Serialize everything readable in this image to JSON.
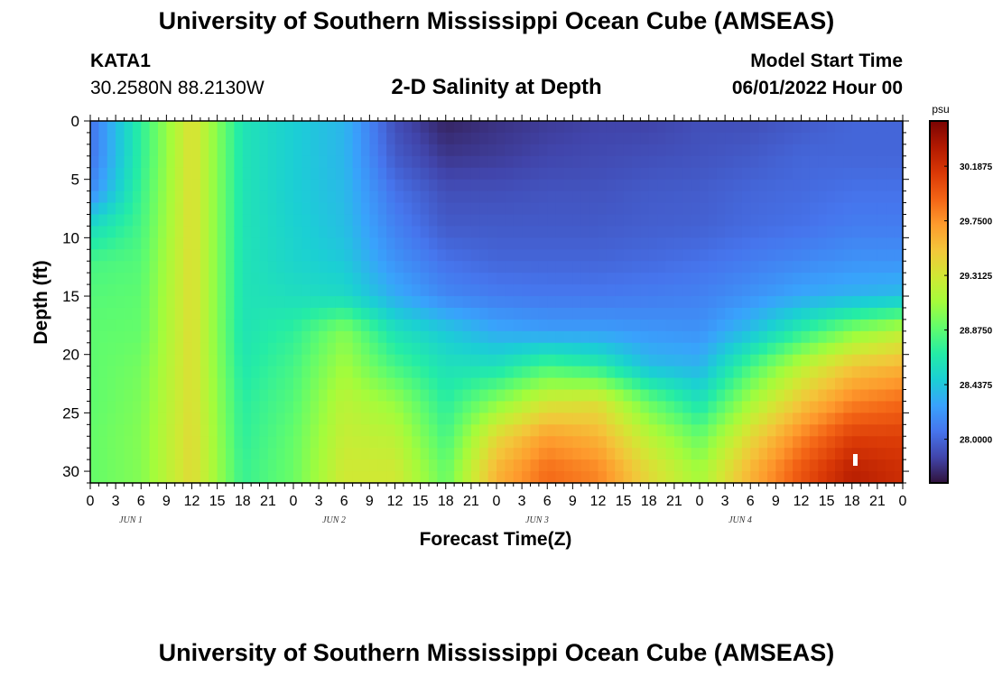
{
  "page": {
    "title": "University of Southern Mississippi Ocean Cube (AMSEAS)",
    "station": "KATA1",
    "location": "30.2580N  88.2130W",
    "subtitle": "2-D Salinity at Depth",
    "model_start_label": "Model Start Time",
    "model_start_value": "06/01/2022 Hour 00",
    "footer_title": "University of Southern Mississippi Ocean Cube (AMSEAS)"
  },
  "chart_data": {
    "type": "heatmap",
    "title": "2-D Salinity at Depth",
    "xlabel": "Forecast Time(Z)",
    "ylabel": "Depth (ft)",
    "x_tick_labels": [
      "0",
      "3",
      "6",
      "9",
      "12",
      "15",
      "18",
      "21",
      "0",
      "3",
      "6",
      "9",
      "12",
      "15",
      "18",
      "21",
      "0",
      "3",
      "6",
      "9",
      "12",
      "15",
      "18",
      "21",
      "0",
      "3",
      "6",
      "9",
      "12",
      "15",
      "18",
      "21",
      "0"
    ],
    "date_labels": [
      "JUN 1",
      "JUN 2",
      "JUN 3",
      "JUN 4"
    ],
    "xlim_hours": [
      0,
      96
    ],
    "y_ticks": [
      0,
      5,
      10,
      15,
      20,
      25,
      30
    ],
    "ylim_ft": [
      0,
      31
    ],
    "y_inverted": true,
    "colorbar": {
      "unit": "psu",
      "tick_labels": [
        "30.1875",
        "29.7500",
        "29.3125",
        "28.8750",
        "28.4375",
        "28.0000"
      ],
      "ticks": [
        30.1875,
        29.75,
        29.3125,
        28.875,
        28.4375,
        28.0
      ],
      "range": [
        27.65,
        30.55
      ],
      "colormap": [
        "#30123b",
        "#4145ab",
        "#4675ed",
        "#39a2fc",
        "#1bcfd4",
        "#24eca6",
        "#61fc6c",
        "#a4fc3b",
        "#d1e834",
        "#f3c63a",
        "#fe9b2d",
        "#f36315",
        "#d93806",
        "#b11901",
        "#7a0403"
      ]
    },
    "times_hours": [
      0,
      6,
      12,
      18,
      24,
      30,
      36,
      42,
      48,
      54,
      60,
      66,
      72,
      78,
      84,
      90,
      96
    ],
    "depths_ft": [
      0,
      3,
      6,
      9,
      12,
      15,
      18,
      21,
      24,
      27,
      30,
      31
    ],
    "salinity_psu": [
      [
        28.05,
        28.72,
        29.38,
        28.62,
        28.48,
        28.36,
        27.9,
        27.72,
        27.78,
        27.82,
        27.85,
        27.85,
        27.9,
        27.9,
        27.95,
        28.0,
        28.0
      ],
      [
        28.05,
        28.72,
        29.38,
        28.62,
        28.48,
        28.36,
        27.95,
        27.8,
        27.82,
        27.86,
        27.88,
        27.9,
        27.92,
        27.95,
        28.0,
        28.0,
        28.0
      ],
      [
        28.15,
        28.76,
        29.38,
        28.62,
        28.48,
        28.38,
        28.05,
        27.9,
        27.9,
        27.92,
        27.92,
        27.95,
        27.96,
        28.0,
        28.02,
        28.05,
        28.05
      ],
      [
        28.55,
        28.8,
        29.38,
        28.62,
        28.5,
        28.4,
        28.12,
        27.95,
        27.95,
        27.95,
        27.95,
        27.97,
        27.98,
        28.02,
        28.05,
        28.1,
        28.1
      ],
      [
        28.8,
        28.85,
        29.38,
        28.62,
        28.52,
        28.45,
        28.2,
        28.05,
        28.0,
        28.0,
        28.0,
        28.02,
        28.05,
        28.1,
        28.15,
        28.2,
        28.2
      ],
      [
        28.85,
        28.88,
        29.38,
        28.62,
        28.58,
        28.55,
        28.32,
        28.15,
        28.1,
        28.08,
        28.08,
        28.1,
        28.12,
        28.2,
        28.3,
        28.35,
        28.4
      ],
      [
        28.88,
        28.9,
        29.38,
        28.62,
        28.72,
        29.0,
        28.6,
        28.45,
        28.3,
        28.25,
        28.25,
        28.22,
        28.2,
        28.4,
        28.7,
        29.0,
        29.2
      ],
      [
        28.88,
        28.95,
        29.38,
        28.65,
        28.8,
        29.1,
        28.8,
        28.6,
        28.6,
        28.8,
        28.7,
        28.4,
        28.35,
        28.8,
        29.2,
        29.5,
        29.6
      ],
      [
        28.88,
        28.98,
        29.38,
        28.7,
        28.85,
        29.2,
        29.05,
        28.7,
        29.0,
        29.3,
        29.35,
        28.9,
        28.6,
        29.1,
        29.5,
        29.8,
        29.9
      ],
      [
        28.9,
        29.0,
        29.4,
        28.72,
        28.9,
        29.25,
        29.2,
        28.8,
        29.4,
        29.7,
        29.6,
        29.2,
        28.9,
        29.4,
        29.8,
        30.1,
        30.1
      ],
      [
        28.9,
        29.0,
        29.4,
        28.75,
        28.92,
        29.3,
        29.3,
        28.9,
        29.6,
        29.9,
        29.8,
        29.4,
        29.1,
        29.6,
        30.0,
        30.3,
        30.2
      ],
      [
        28.9,
        29.0,
        29.4,
        28.75,
        28.92,
        29.3,
        29.3,
        28.9,
        29.6,
        29.9,
        29.8,
        29.4,
        29.1,
        29.6,
        30.0,
        30.3,
        30.2
      ]
    ]
  }
}
